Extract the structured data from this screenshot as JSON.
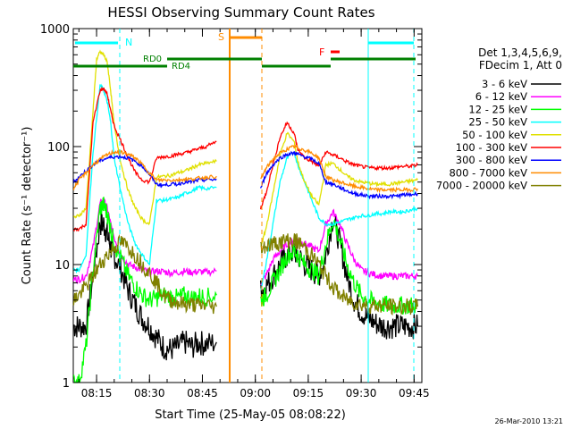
{
  "chart_data": {
    "type": "line",
    "title": "HESSI Observing Summary Count Rates",
    "xlabel": "Start Time (25-May-05 08:08:22)",
    "ylabel": "Count Rate (s⁻¹ detector⁻¹)",
    "yscale": "log",
    "ylim": [
      1,
      1000
    ],
    "xlim_minutes": [
      488.4,
      587.2
    ],
    "x_tick_labels": [
      "08:15",
      "08:30",
      "08:45",
      "09:00",
      "09:15",
      "09:30",
      "09:45"
    ],
    "x_tick_minutes": [
      495,
      510,
      525,
      540,
      555,
      570,
      585
    ],
    "y_tick_labels": [
      "1",
      "10",
      "100",
      "1000"
    ],
    "y_tick_values": [
      1,
      10,
      100,
      1000
    ],
    "legend_header": [
      "Det 1,3,4,5,6,9,",
      "FDecim 1, Att 0"
    ],
    "timestamp": "26-Mar-2010 13:21",
    "series": [
      {
        "name": "3 - 6 keV",
        "color": "#000000",
        "x": [
          488.5,
          490,
          492,
          494,
          496,
          497,
          498,
          499,
          500,
          502,
          504,
          506,
          508,
          510,
          512,
          514,
          516,
          518,
          520,
          522,
          524,
          526,
          529
        ],
        "y": [
          3,
          3,
          3,
          8,
          22,
          22,
          18,
          14,
          12,
          9,
          6,
          4.5,
          3.5,
          3,
          2.4,
          2,
          1.9,
          2,
          2.2,
          2,
          2.2,
          2.1,
          2.2
        ]
      },
      {
        "name": "6 - 12 keV",
        "color": "#ff00ff",
        "x": [
          488.5,
          490,
          492,
          494,
          496,
          497,
          498,
          499,
          500,
          502,
          504,
          506,
          508,
          510,
          512,
          514,
          516,
          518,
          520,
          522,
          524,
          526,
          529
        ],
        "y": [
          7.5,
          7.5,
          8,
          14,
          33,
          35,
          30,
          22,
          17,
          12,
          10,
          9.5,
          9,
          8.6,
          8.8,
          8.7,
          8.5,
          8.6,
          8.8,
          8.6,
          8.7,
          8.6,
          8.8
        ]
      },
      {
        "name": "12 - 25 keV",
        "color": "#00ff00",
        "x": [
          488.5,
          490,
          492,
          494,
          496,
          497,
          498,
          499,
          500,
          502,
          504,
          506,
          508,
          510,
          512,
          514,
          516,
          518,
          520,
          522,
          524,
          526,
          529
        ],
        "y": [
          1,
          1,
          2,
          9,
          30,
          32,
          27,
          20,
          15,
          11,
          8,
          6.5,
          5.5,
          5,
          5.2,
          5.5,
          5.3,
          5.2,
          5.5,
          5.2,
          5.4,
          5.3,
          5.5
        ]
      },
      {
        "name": "25 - 50 keV",
        "color": "#00ffff",
        "x": [
          488.5,
          490,
          492,
          494,
          496,
          497,
          498,
          499,
          500,
          502,
          504,
          506,
          508,
          510,
          512,
          514,
          516,
          518,
          520,
          522,
          524,
          526,
          529
        ],
        "y": [
          9,
          9,
          12,
          90,
          330,
          300,
          240,
          160,
          80,
          40,
          22,
          15,
          12,
          10,
          35,
          35,
          36,
          37,
          40,
          42,
          45,
          44,
          45
        ]
      },
      {
        "name": "50 - 100 keV",
        "color": "#e0e000",
        "x": [
          488.5,
          490,
          492,
          494,
          495,
          496,
          497,
          498,
          499,
          500,
          502,
          504,
          506,
          508,
          510,
          512,
          514,
          516,
          518,
          520,
          522,
          524,
          526,
          529
        ],
        "y": [
          25,
          26,
          30,
          200,
          550,
          630,
          600,
          520,
          300,
          150,
          70,
          42,
          30,
          24,
          22,
          55,
          56,
          57,
          60,
          62,
          66,
          70,
          72,
          75
        ]
      },
      {
        "name": "100 - 300 keV",
        "color": "#ff0000",
        "x": [
          488.5,
          490,
          492,
          494,
          496,
          497,
          498,
          499,
          500,
          502,
          504,
          506,
          508,
          510,
          512,
          514,
          516,
          518,
          520,
          522,
          524,
          526,
          529
        ],
        "y": [
          20,
          20,
          22,
          160,
          300,
          310,
          280,
          200,
          150,
          110,
          80,
          60,
          52,
          50,
          80,
          82,
          83,
          86,
          88,
          92,
          96,
          100,
          110
        ]
      },
      {
        "name": "300 - 800 keV",
        "color": "#0000ff",
        "x": [
          488.5,
          490,
          492,
          494,
          496,
          498,
          500,
          502,
          504,
          506,
          508,
          510,
          512,
          514,
          516,
          518,
          520,
          522,
          524,
          526,
          529
        ],
        "y": [
          50,
          55,
          62,
          70,
          76,
          80,
          82,
          82,
          80,
          75,
          68,
          58,
          48,
          47,
          48,
          48,
          50,
          50,
          52,
          52,
          53
        ]
      },
      {
        "name": "800 - 7000 keV",
        "color": "#ff8c00",
        "x": [
          488.5,
          490,
          492,
          494,
          496,
          498,
          500,
          502,
          504,
          506,
          508,
          510,
          512,
          514,
          516,
          518,
          520,
          522,
          524,
          526,
          529
        ],
        "y": [
          44,
          52,
          60,
          70,
          78,
          85,
          90,
          90,
          86,
          80,
          70,
          60,
          52,
          52,
          52,
          52,
          53,
          53,
          54,
          55,
          56
        ]
      },
      {
        "name": "7000 - 20000 keV",
        "color": "#808000",
        "x": [
          488.5,
          490,
          492,
          494,
          496,
          498,
          500,
          502,
          504,
          506,
          508,
          510,
          512,
          514,
          516,
          518,
          520,
          522,
          524,
          526,
          529
        ],
        "y": [
          5,
          5.5,
          6.5,
          8,
          10,
          12,
          14,
          15.5,
          14,
          12,
          10,
          8.5,
          7,
          5.5,
          5,
          4.8,
          4.6,
          4.6,
          4.5,
          4.5,
          4.4
        ]
      }
    ],
    "second_segment": {
      "x": [
        541.5,
        543,
        545,
        547,
        549,
        551,
        552,
        554,
        556,
        558,
        560,
        562,
        564,
        566,
        568,
        570,
        572,
        574,
        576,
        578,
        580,
        582,
        584,
        586
      ],
      "series": {
        "3 - 6 keV": [
          6,
          6.5,
          8,
          10,
          12,
          13,
          12,
          10,
          9,
          8,
          12,
          25,
          15,
          8,
          5,
          4,
          3.5,
          3.2,
          3,
          3,
          3,
          3,
          3,
          3
        ],
        "6 - 12 keV": [
          7,
          8,
          11,
          13,
          15,
          16,
          16,
          15,
          14,
          13,
          22,
          28,
          22,
          15,
          11,
          9,
          8.5,
          8.2,
          8,
          8,
          8,
          8,
          8,
          8
        ],
        "12 - 25 keV": [
          5,
          5.5,
          7,
          9,
          12,
          13,
          12,
          10,
          9,
          8,
          15,
          24,
          16,
          10,
          7,
          5.5,
          5,
          4.8,
          4.6,
          4.5,
          4.5,
          4.5,
          4.5,
          4.5
        ],
        "25 - 50 keV": [
          6,
          10,
          22,
          50,
          80,
          90,
          70,
          50,
          35,
          25,
          22,
          22,
          23,
          24,
          25,
          26,
          26,
          27,
          27,
          28,
          28,
          28,
          29,
          30
        ],
        "50 - 100 keV": [
          14,
          20,
          40,
          85,
          130,
          110,
          75,
          50,
          38,
          32,
          70,
          72,
          64,
          56,
          52,
          50,
          49,
          48,
          48,
          48,
          49,
          50,
          51,
          52
        ],
        "100 - 300 keV": [
          30,
          40,
          70,
          120,
          160,
          130,
          95,
          80,
          75,
          68,
          90,
          85,
          80,
          74,
          70,
          68,
          66,
          66,
          66,
          66,
          67,
          68,
          68,
          70
        ],
        "300 - 800 keV": [
          44,
          58,
          70,
          80,
          86,
          88,
          86,
          82,
          78,
          72,
          50,
          48,
          45,
          42,
          40,
          39,
          38,
          38,
          38,
          38,
          38,
          39,
          39,
          40
        ],
        "800 - 7000 keV": [
          52,
          65,
          78,
          88,
          95,
          100,
          98,
          93,
          88,
          80,
          56,
          52,
          50,
          48,
          46,
          45,
          44,
          43,
          43,
          43,
          43,
          43,
          43,
          44
        ],
        "7000 - 20000 keV": [
          14,
          14.5,
          15,
          15.5,
          16,
          16,
          15.5,
          14,
          12,
          10,
          8,
          6.5,
          5.5,
          5,
          4.8,
          4.6,
          4.5,
          4.5,
          4.5,
          4.4,
          4.4,
          4.4,
          4.4,
          4.4
        ]
      }
    },
    "annotations": [
      {
        "label": "N",
        "color": "#00ffff"
      },
      {
        "label": "S",
        "color": "#ff8c00"
      },
      {
        "label": "F",
        "color": "#ff0000"
      },
      {
        "label": "RD0",
        "color": "#008000"
      },
      {
        "label": "RD4",
        "color": "#008000"
      }
    ],
    "legend_placement": "right",
    "grid": false
  }
}
